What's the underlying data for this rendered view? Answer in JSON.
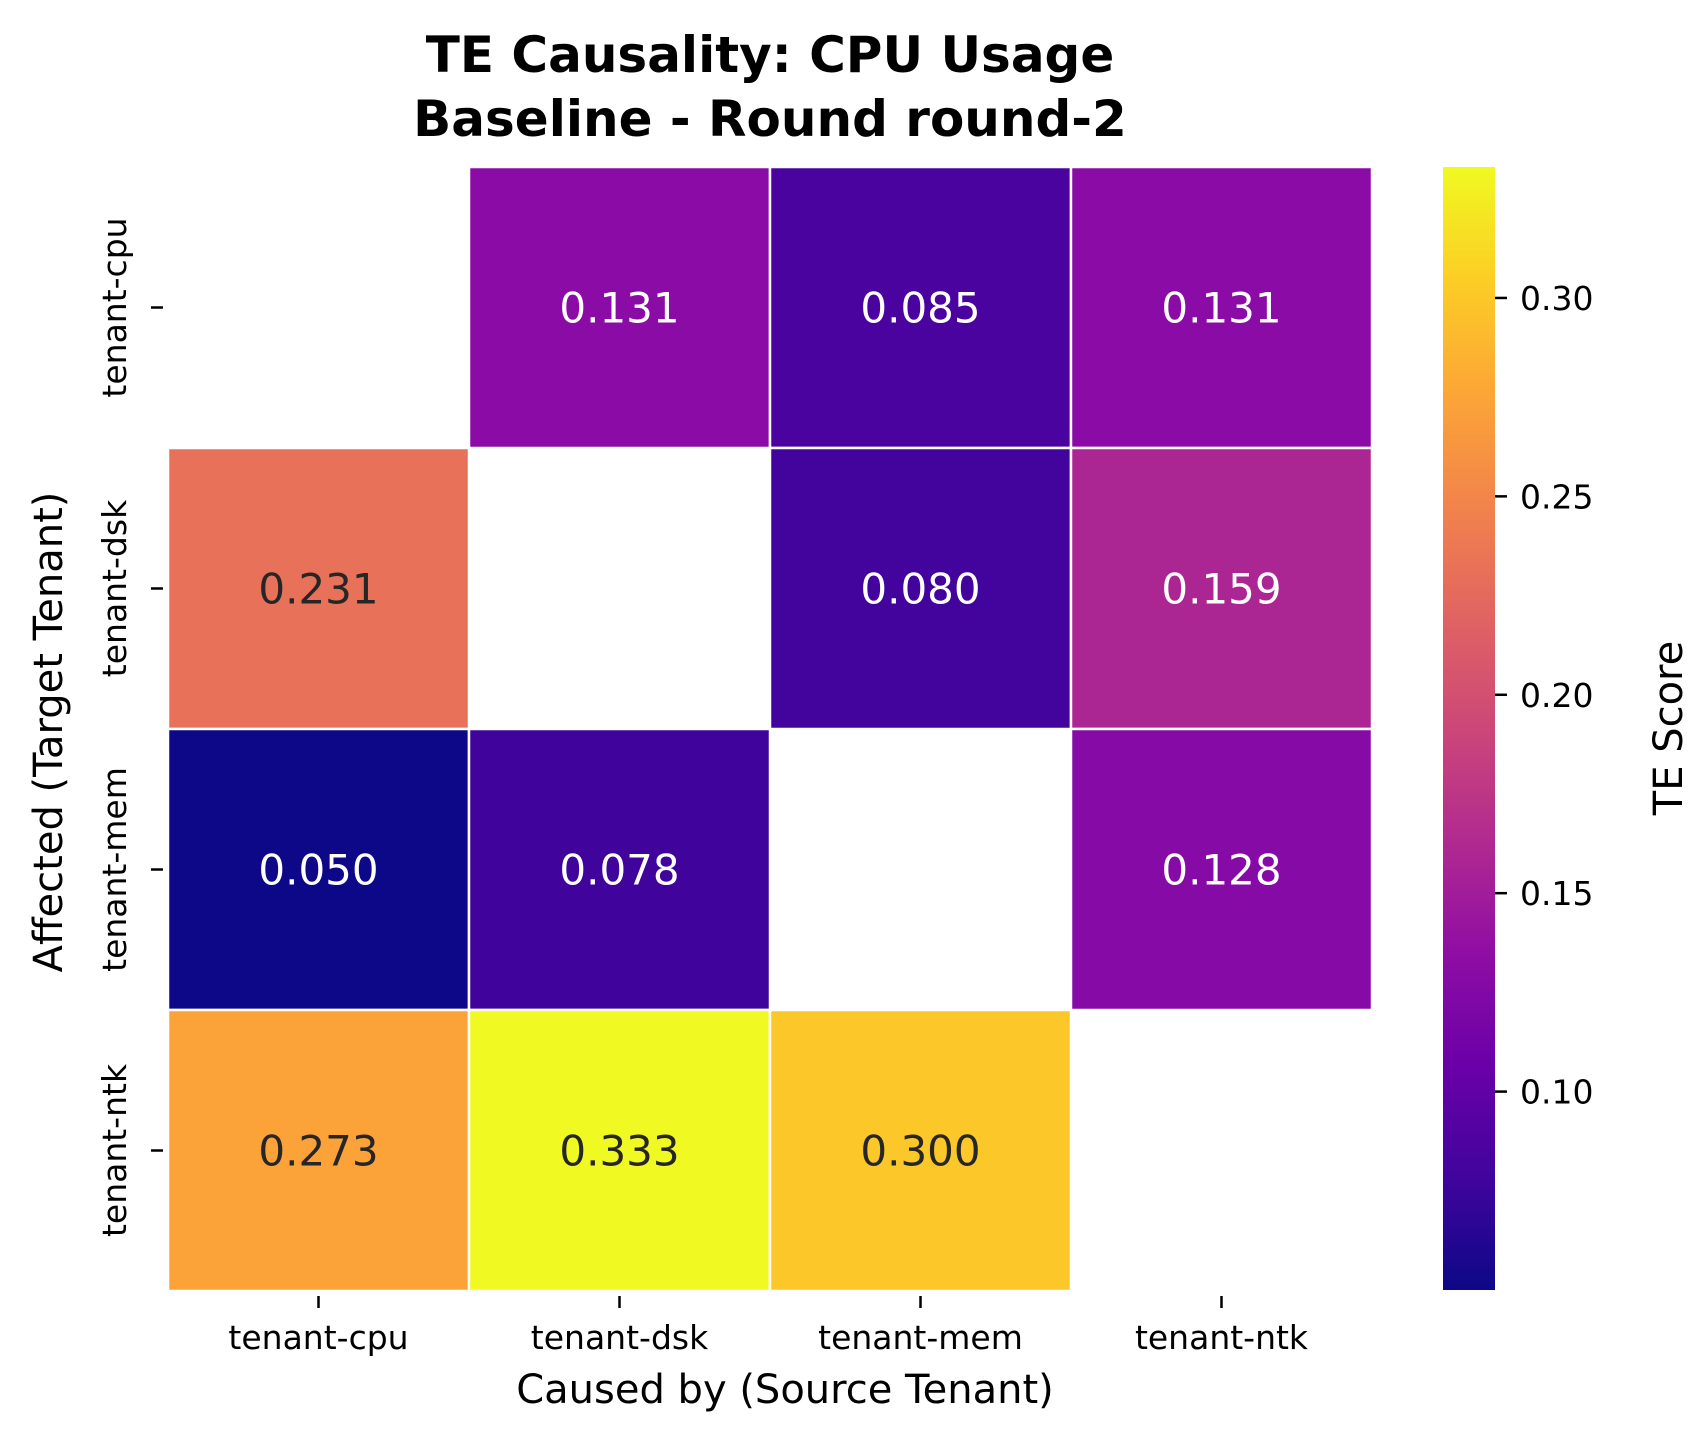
{
  "chart_data": {
    "type": "heatmap",
    "title": [
      "TE Causality: CPU Usage",
      "Baseline - Round round-2"
    ],
    "xlabel": "Caused by (Source Tenant)",
    "ylabel": "Affected (Target Tenant)",
    "x_categories": [
      "tenant-cpu",
      "tenant-dsk",
      "tenant-mem",
      "tenant-ntk"
    ],
    "y_categories": [
      "tenant-cpu",
      "tenant-dsk",
      "tenant-mem",
      "tenant-ntk"
    ],
    "values": [
      [
        null,
        0.131,
        0.085,
        0.131
      ],
      [
        0.231,
        null,
        0.08,
        0.159
      ],
      [
        0.05,
        0.078,
        null,
        0.128
      ],
      [
        0.273,
        0.333,
        0.3,
        null
      ]
    ],
    "value_labels": [
      [
        null,
        "0.131",
        "0.085",
        "0.131"
      ],
      [
        "0.231",
        null,
        "0.080",
        "0.159"
      ],
      [
        "0.050",
        "0.078",
        null,
        "0.128"
      ],
      [
        "0.273",
        "0.333",
        "0.300",
        null
      ]
    ],
    "colormap": "plasma",
    "colorbar": {
      "label": "TE Score",
      "vmin": 0.05,
      "vmax": 0.333,
      "ticks": [
        0.1,
        0.15,
        0.2,
        0.25,
        0.3
      ],
      "tick_labels": [
        "0.10",
        "0.15",
        "0.20",
        "0.25",
        "0.30"
      ]
    },
    "grid": false,
    "legend": "colorbar-right"
  }
}
